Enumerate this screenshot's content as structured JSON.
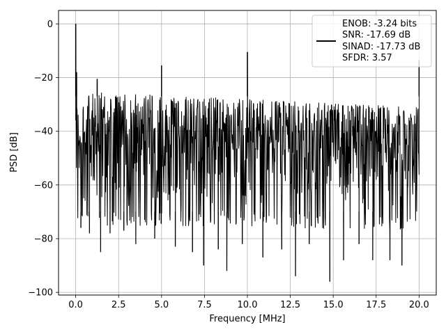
{
  "chart_data": {
    "type": "line",
    "title": "",
    "xlabel": "Frequency [MHz]",
    "ylabel": "PSD [dB]",
    "xlim": [
      -1,
      21
    ],
    "ylim": [
      -101,
      5
    ],
    "xticks": [
      0.0,
      2.5,
      5.0,
      7.5,
      10.0,
      12.5,
      15.0,
      17.5,
      20.0
    ],
    "xtick_labels": [
      "0.0",
      "2.5",
      "5.0",
      "7.5",
      "10.0",
      "12.5",
      "15.0",
      "17.5",
      "20.0"
    ],
    "yticks": [
      0,
      -20,
      -40,
      -60,
      -80,
      -100
    ],
    "ytick_labels": [
      "0",
      "−20",
      "−40",
      "−60",
      "−80",
      "−100"
    ],
    "grid": true,
    "legend_position": "top-right",
    "line_color": "#000000",
    "series": [
      {
        "legend_lines": [
          "ENOB: -3.24 bits",
          "SNR: -17.69 dB",
          "SINAD: -17.73 dB",
          "SFDR: 3.57"
        ],
        "noise_floor": {
          "upper_start": -27,
          "upper_end": -33,
          "lower_start": -70,
          "lower_end": -72
        },
        "spurs": [
          {
            "x": 0.0,
            "y": 0
          },
          {
            "x": 0.05,
            "y": -18
          },
          {
            "x": 1.25,
            "y": -20.5
          },
          {
            "x": 5.0,
            "y": -15.5
          },
          {
            "x": 10.0,
            "y": -10.5
          },
          {
            "x": 20.0,
            "y": -13.5
          }
        ],
        "dips": [
          {
            "x": 0.3,
            "y": -76
          },
          {
            "x": 0.8,
            "y": -78
          },
          {
            "x": 1.45,
            "y": -85
          },
          {
            "x": 2.0,
            "y": -78
          },
          {
            "x": 2.8,
            "y": -77
          },
          {
            "x": 3.5,
            "y": -82
          },
          {
            "x": 4.6,
            "y": -80
          },
          {
            "x": 5.8,
            "y": -83
          },
          {
            "x": 6.8,
            "y": -85
          },
          {
            "x": 7.45,
            "y": -90
          },
          {
            "x": 8.3,
            "y": -84
          },
          {
            "x": 8.8,
            "y": -92
          },
          {
            "x": 9.7,
            "y": -82
          },
          {
            "x": 10.9,
            "y": -87
          },
          {
            "x": 12.0,
            "y": -84
          },
          {
            "x": 12.8,
            "y": -94
          },
          {
            "x": 13.6,
            "y": -82
          },
          {
            "x": 14.8,
            "y": -96
          },
          {
            "x": 15.6,
            "y": -88
          },
          {
            "x": 16.5,
            "y": -82
          },
          {
            "x": 17.3,
            "y": -88
          },
          {
            "x": 18.3,
            "y": -88
          },
          {
            "x": 19.0,
            "y": -90
          }
        ]
      }
    ]
  }
}
